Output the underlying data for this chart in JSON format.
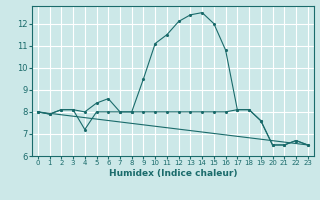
{
  "xlabel": "Humidex (Indice chaleur)",
  "bg_color": "#cce8e8",
  "grid_color": "#ffffff",
  "line_color": "#1a6b6b",
  "xlim": [
    -0.5,
    23.5
  ],
  "ylim": [
    6.0,
    12.8
  ],
  "yticks": [
    6,
    7,
    8,
    9,
    10,
    11,
    12
  ],
  "xticks": [
    0,
    1,
    2,
    3,
    4,
    5,
    6,
    7,
    8,
    9,
    10,
    11,
    12,
    13,
    14,
    15,
    16,
    17,
    18,
    19,
    20,
    21,
    22,
    23
  ],
  "series": [
    {
      "x": [
        0,
        1,
        2,
        3,
        4,
        5,
        6,
        7,
        8,
        9,
        10,
        11,
        12,
        13,
        14,
        15,
        16,
        17,
        18,
        19,
        20,
        21,
        22,
        23
      ],
      "y": [
        8.0,
        7.9,
        8.1,
        8.1,
        8.0,
        8.4,
        8.6,
        8.0,
        8.0,
        9.5,
        11.1,
        11.5,
        12.1,
        12.4,
        12.5,
        12.0,
        10.8,
        8.1,
        8.1,
        7.6,
        6.5,
        6.5,
        6.7,
        6.5
      ]
    },
    {
      "x": [
        0,
        1,
        2,
        3,
        4,
        5,
        6,
        7,
        8,
        9,
        10,
        11,
        12,
        13,
        14,
        15,
        16,
        17,
        18,
        19,
        20,
        21,
        22,
        23
      ],
      "y": [
        8.0,
        7.9,
        8.1,
        8.1,
        7.2,
        8.0,
        8.0,
        8.0,
        8.0,
        8.0,
        8.0,
        8.0,
        8.0,
        8.0,
        8.0,
        8.0,
        8.0,
        8.1,
        8.1,
        7.6,
        6.5,
        6.5,
        6.7,
        6.5
      ]
    },
    {
      "x": [
        0,
        23
      ],
      "y": [
        8.0,
        6.5
      ]
    }
  ]
}
